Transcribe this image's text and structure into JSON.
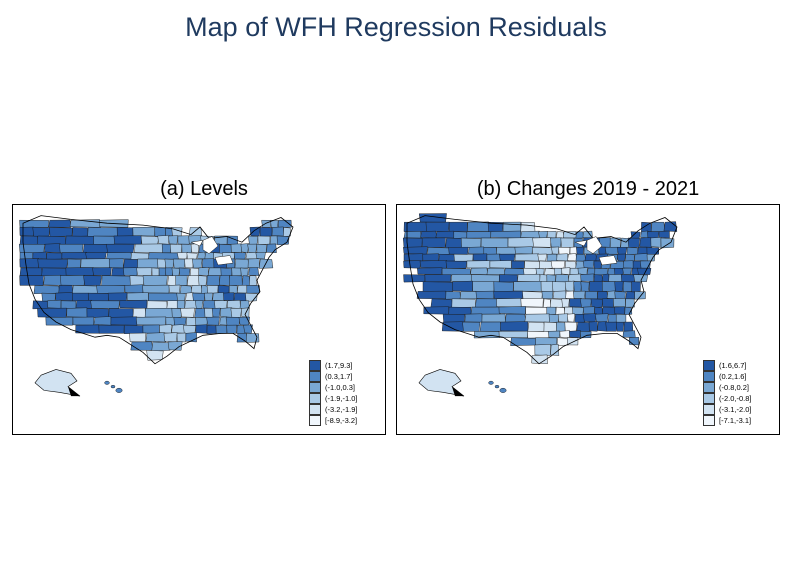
{
  "title": "Map of WFH Regression Residuals",
  "colors": [
    "#2357a4",
    "#4f85c2",
    "#7aa8d4",
    "#a9c9e6",
    "#d2e3f2",
    "#f0f6fc"
  ],
  "panels": [
    {
      "title": "(a) Levels",
      "legend": [
        {
          "label": "(1.7,9.3]"
        },
        {
          "label": "(0.3,1.7]"
        },
        {
          "label": "(-1.0,0.3]"
        },
        {
          "label": "(-1.9,-1.0]"
        },
        {
          "label": "(-3.2,-1.9]"
        },
        {
          "label": "[-8.9,-3.2]"
        }
      ]
    },
    {
      "title": "(b) Changes 2019 - 2021",
      "legend": [
        {
          "label": "(1.6,6.7]"
        },
        {
          "label": "(0.2,1.6]"
        },
        {
          "label": "(-0.8,0.2]"
        },
        {
          "label": "(-2.0,-0.8]"
        },
        {
          "label": "(-3.1,-2.0]"
        },
        {
          "label": "[-7.1,-3.1]"
        }
      ]
    }
  ]
}
